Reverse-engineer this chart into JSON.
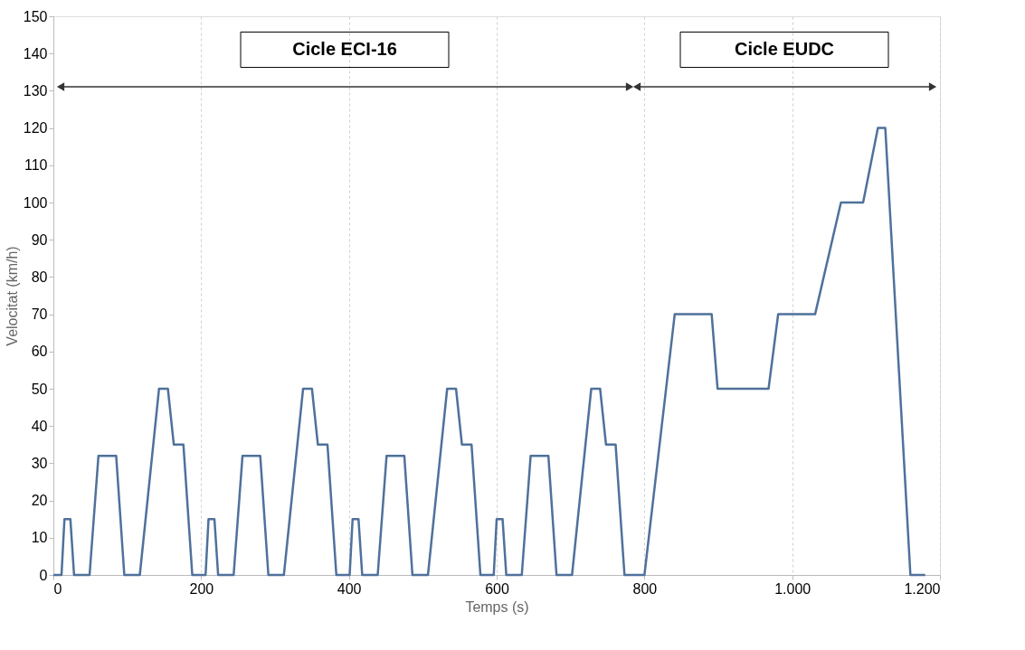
{
  "chart_data": {
    "type": "line",
    "xlabel": "Temps (s)",
    "ylabel": "Velocitat (km/h)",
    "x": [
      0,
      11,
      15,
      23,
      28,
      49,
      61,
      85,
      96,
      117,
      143,
      155,
      163,
      176,
      188,
      195,
      206,
      210,
      218,
      223,
      244,
      256,
      280,
      291,
      312,
      338,
      350,
      358,
      371,
      383,
      390,
      401,
      405,
      413,
      418,
      439,
      451,
      475,
      486,
      507,
      533,
      545,
      553,
      566,
      578,
      585,
      596,
      600,
      608,
      613,
      634,
      646,
      670,
      681,
      702,
      728,
      740,
      748,
      761,
      773,
      780,
      800,
      841,
      891,
      899,
      968,
      981,
      1031,
      1066,
      1096,
      1116,
      1126,
      1160,
      1180
    ],
    "series": [
      {
        "color": "#4f719b",
        "values": [
          0,
          0,
          15,
          15,
          0,
          0,
          32,
          32,
          0,
          0,
          50,
          50,
          35,
          35,
          0,
          0,
          0,
          15,
          15,
          0,
          0,
          32,
          32,
          0,
          0,
          50,
          50,
          35,
          35,
          0,
          0,
          0,
          15,
          15,
          0,
          0,
          32,
          32,
          0,
          0,
          50,
          50,
          35,
          35,
          0,
          0,
          0,
          15,
          15,
          0,
          0,
          32,
          32,
          0,
          0,
          50,
          50,
          35,
          35,
          0,
          0,
          0,
          70,
          70,
          50,
          50,
          70,
          70,
          100,
          100,
          120,
          120,
          0,
          0
        ]
      }
    ],
    "xlim": [
      0,
      1200
    ],
    "ylim": [
      0,
      150
    ],
    "xticks": [
      0,
      200,
      400,
      600,
      800,
      {
        "value": 1000,
        "label": "1.000"
      },
      {
        "value": 1200,
        "label": "1.200"
      }
    ],
    "yticks": [
      0,
      10,
      20,
      30,
      40,
      50,
      60,
      70,
      80,
      90,
      100,
      110,
      120,
      130,
      140,
      150
    ],
    "grid": "x",
    "marker": "none",
    "line_style": "solid",
    "annotations": [
      "Cicle ECI-16",
      "Cicle EUDC"
    ]
  }
}
